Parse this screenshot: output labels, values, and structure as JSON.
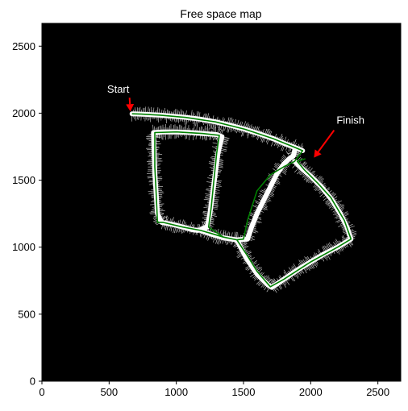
{
  "chart_data": {
    "type": "scatter",
    "title": "Free space map",
    "xlabel": "",
    "ylabel": "",
    "xlim": [
      0,
      2670
    ],
    "ylim": [
      0,
      2670
    ],
    "xticks": [
      0,
      500,
      1000,
      1500,
      2000,
      2500
    ],
    "yticks": [
      0,
      500,
      1000,
      1500,
      2000,
      2500
    ],
    "grid": false,
    "legend": "none",
    "colors": {
      "background": "#000000",
      "free_space": "#ffffff",
      "path": "#008000",
      "arrow": "#ff0000",
      "annotation_text": "#ffffff"
    },
    "series": [
      {
        "values_x": [
          670,
          700,
          740,
          800,
          880,
          970,
          1070,
          1180,
          1290,
          1400,
          1510,
          1620,
          1720,
          1800,
          1880,
          1940
        ],
        "values_y": [
          1995,
          1994,
          1993,
          1990,
          1985,
          1978,
          1968,
          1955,
          1935,
          1910,
          1880,
          1845,
          1810,
          1775,
          1745,
          1720
        ],
        "free_space": true
      },
      {
        "values_x": [
          830,
          900,
          1000,
          1100,
          1200,
          1300,
          1340,
          1310,
          1290,
          1270,
          1250,
          1230,
          1200,
          1180,
          1160,
          1120,
          1050,
          970,
          890,
          860,
          850,
          840,
          835,
          830
        ],
        "values_y": [
          1855,
          1860,
          1860,
          1856,
          1848,
          1840,
          1825,
          1700,
          1550,
          1400,
          1250,
          1150,
          1140,
          1130,
          1125,
          1130,
          1150,
          1170,
          1185,
          1250,
          1400,
          1550,
          1700,
          1855
        ],
        "free_space": true
      },
      {
        "values_x": [
          1180,
          1250,
          1350,
          1450,
          1530,
          1560,
          1600,
          1650,
          1700,
          1750,
          1800,
          1840,
          1870,
          1880
        ],
        "values_y": [
          1125,
          1100,
          1070,
          1055,
          1060,
          1150,
          1250,
          1350,
          1450,
          1550,
          1620,
          1660,
          1680,
          1720
        ],
        "free_space": true
      },
      {
        "values_x": [
          1450,
          1520,
          1600,
          1680,
          1710,
          1800,
          1900,
          2000,
          2100,
          2200,
          2300,
          2270,
          2220,
          2160,
          2080,
          2000,
          1920,
          1880
        ],
        "values_y": [
          1055,
          920,
          800,
          720,
          700,
          760,
          830,
          890,
          950,
          1000,
          1060,
          1150,
          1250,
          1350,
          1450,
          1530,
          1600,
          1640
        ],
        "free_space": true
      }
    ],
    "path_points": [
      [
        670,
        1995
      ],
      [
        740,
        1993
      ],
      [
        880,
        1985
      ],
      [
        1070,
        1968
      ],
      [
        1290,
        1935
      ],
      [
        1510,
        1880
      ],
      [
        1720,
        1810
      ],
      [
        1880,
        1745
      ],
      [
        1940,
        1720
      ],
      [
        1880,
        1640
      ],
      [
        1800,
        1600
      ],
      [
        1700,
        1540
      ],
      [
        1600,
        1420
      ],
      [
        1530,
        1200
      ],
      [
        1500,
        1060
      ],
      [
        1450,
        1055
      ],
      [
        1350,
        1075
      ],
      [
        1250,
        1105
      ],
      [
        1180,
        1125
      ],
      [
        1050,
        1150
      ],
      [
        900,
        1185
      ],
      [
        860,
        1185
      ],
      [
        850,
        1400
      ],
      [
        840,
        1600
      ],
      [
        840,
        1855
      ],
      [
        1000,
        1860
      ],
      [
        1200,
        1848
      ],
      [
        1320,
        1835
      ],
      [
        1300,
        1700
      ],
      [
        1280,
        1500
      ],
      [
        1260,
        1300
      ],
      [
        1240,
        1150
      ],
      [
        1350,
        1075
      ],
      [
        1450,
        1055
      ],
      [
        1520,
        950
      ],
      [
        1600,
        820
      ],
      [
        1700,
        705
      ],
      [
        1800,
        760
      ],
      [
        2000,
        890
      ],
      [
        2200,
        1000
      ],
      [
        2300,
        1060
      ],
      [
        2250,
        1200
      ],
      [
        2150,
        1370
      ],
      [
        2050,
        1480
      ],
      [
        1950,
        1580
      ],
      [
        1900,
        1640
      ],
      [
        1960,
        1660
      ]
    ],
    "annotations": [
      {
        "text": "Start",
        "x": 670,
        "y": 1995
      },
      {
        "text": "Finish",
        "x": 2000,
        "y": 1650
      }
    ]
  }
}
